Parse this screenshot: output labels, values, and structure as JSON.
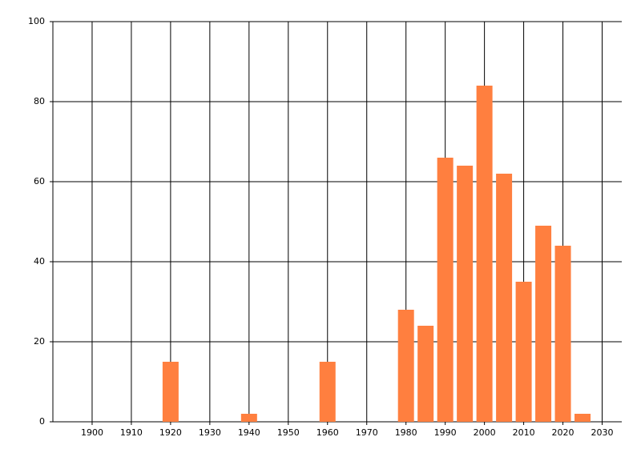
{
  "chart_data": {
    "type": "bar",
    "x": [
      1920,
      1940,
      1960,
      1980,
      1985,
      1990,
      1995,
      2000,
      2005,
      2010,
      2015,
      2020,
      2025
    ],
    "values": [
      15,
      2,
      15,
      28,
      24,
      66,
      64,
      84,
      62,
      35,
      49,
      44,
      2
    ],
    "color": "#ff7f3f",
    "xlim": [
      1890,
      2035
    ],
    "xticks": [
      1900,
      1910,
      1920,
      1930,
      1940,
      1950,
      1960,
      1970,
      1980,
      1990,
      2000,
      2010,
      2020,
      2030
    ],
    "ylim": [
      0,
      100
    ],
    "yticks": [
      0,
      20,
      40,
      60,
      80,
      100
    ],
    "grid": true
  }
}
